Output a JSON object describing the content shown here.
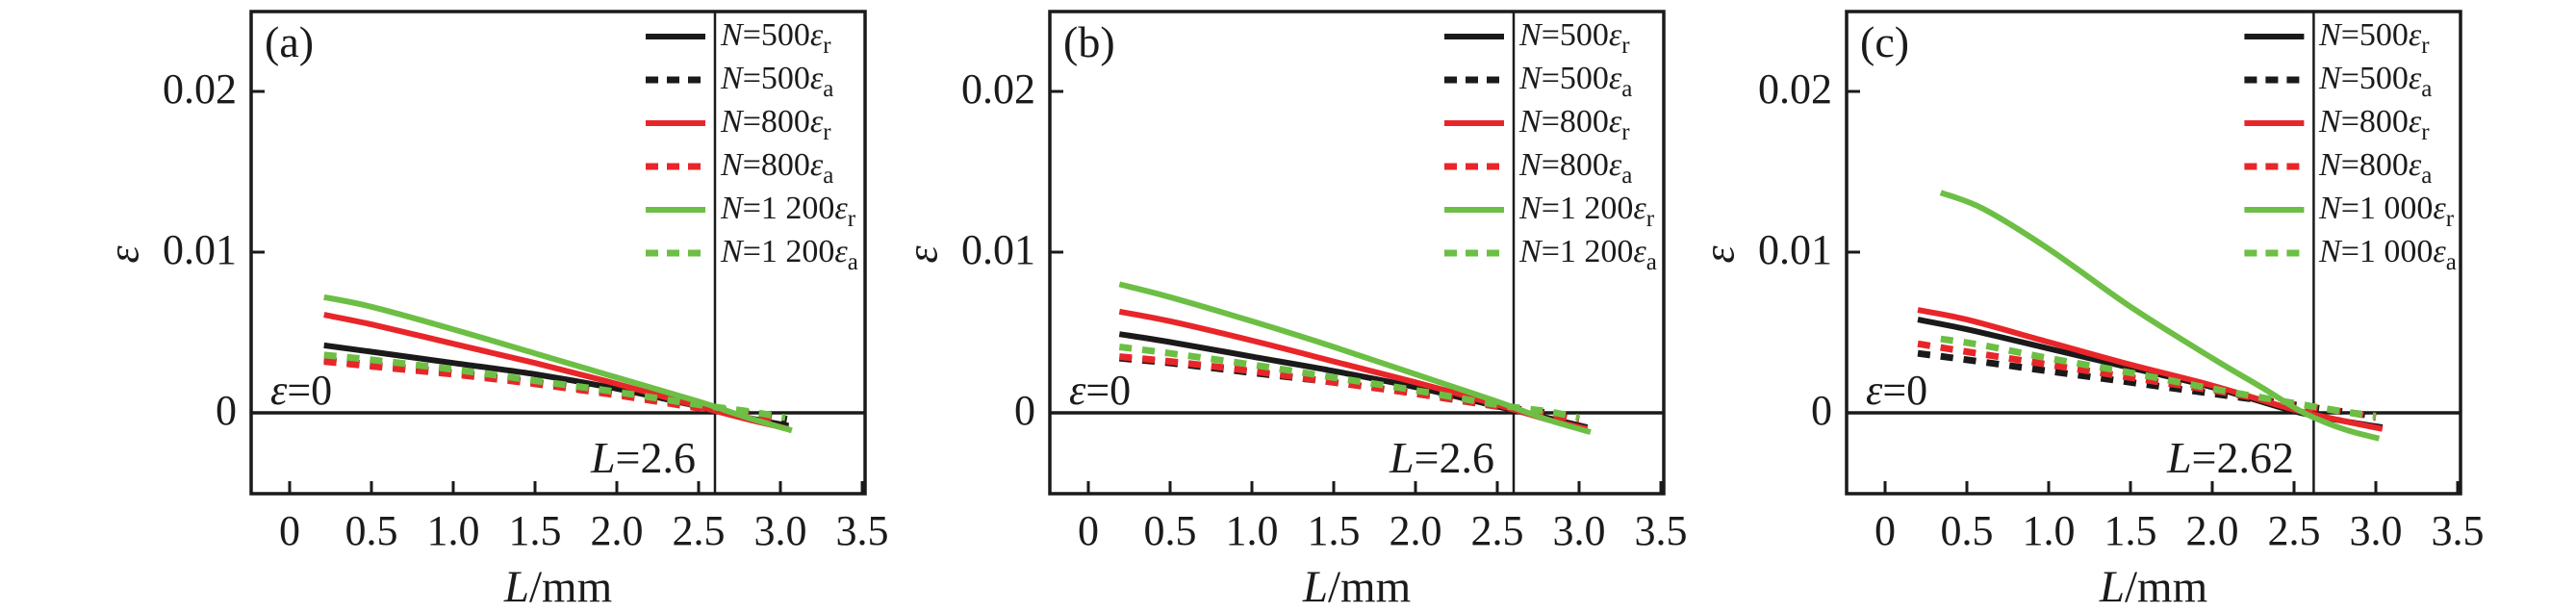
{
  "figure_title": "strain vs length three-panel figure",
  "colors": {
    "black": "#1a1a1a",
    "red": "#e8262a",
    "green": "#6cbf44",
    "frame": "#1a1a1a",
    "background": "#ffffff"
  },
  "axis": {
    "x_ticks": [
      "0",
      "0.5",
      "1.0",
      "1.5",
      "2.0",
      "2.5",
      "3.0",
      "3.5"
    ],
    "y_ticks": [
      "0",
      "0.01",
      "0.02"
    ],
    "xlabel_sym": "L",
    "xlabel_rest": "/mm",
    "ylabel": "ε"
  },
  "panels": [
    {
      "letter": "(a)",
      "eps_zero": {
        "sym": "ε",
        "rest": "=0"
      },
      "vline_label": {
        "sym": "L",
        "rest": "=2.6"
      },
      "legend": [
        {
          "pre": "N",
          "mid": "=500",
          "eps": "ε",
          "sub": "r"
        },
        {
          "pre": "N",
          "mid": "=500",
          "eps": "ε",
          "sub": "a"
        },
        {
          "pre": "N",
          "mid": "=800",
          "eps": "ε",
          "sub": "r"
        },
        {
          "pre": "N",
          "mid": "=800",
          "eps": "ε",
          "sub": "a"
        },
        {
          "pre": "N",
          "mid": "=1 200",
          "eps": "ε",
          "sub": "r"
        },
        {
          "pre": "N",
          "mid": "=1 200",
          "eps": "ε",
          "sub": "a"
        }
      ]
    },
    {
      "letter": "(b)",
      "eps_zero": {
        "sym": "ε",
        "rest": "=0"
      },
      "vline_label": {
        "sym": "L",
        "rest": "=2.6"
      },
      "legend": [
        {
          "pre": "N",
          "mid": "=500",
          "eps": "ε",
          "sub": "r"
        },
        {
          "pre": "N",
          "mid": "=500",
          "eps": "ε",
          "sub": "a"
        },
        {
          "pre": "N",
          "mid": "=800",
          "eps": "ε",
          "sub": "r"
        },
        {
          "pre": "N",
          "mid": "=800",
          "eps": "ε",
          "sub": "a"
        },
        {
          "pre": "N",
          "mid": "=1 200",
          "eps": "ε",
          "sub": "r"
        },
        {
          "pre": "N",
          "mid": "=1 200",
          "eps": "ε",
          "sub": "a"
        }
      ]
    },
    {
      "letter": "(c)",
      "eps_zero": {
        "sym": "ε",
        "rest": "=0"
      },
      "vline_label": {
        "sym": "L",
        "rest": "=2.62"
      },
      "legend": [
        {
          "pre": "N",
          "mid": "=500",
          "eps": "ε",
          "sub": "r"
        },
        {
          "pre": "N",
          "mid": "=500",
          "eps": "ε",
          "sub": "a"
        },
        {
          "pre": "N",
          "mid": "=800",
          "eps": "ε",
          "sub": "r"
        },
        {
          "pre": "N",
          "mid": "=800",
          "eps": "ε",
          "sub": "a"
        },
        {
          "pre": "N",
          "mid": "=1 000",
          "eps": "ε",
          "sub": "r"
        },
        {
          "pre": "N",
          "mid": "=1 000",
          "eps": "ε",
          "sub": "a"
        }
      ]
    }
  ],
  "chart_data": [
    {
      "panel": "a",
      "type": "line",
      "xlabel": "L/mm",
      "ylabel": "ε",
      "xlim": [
        -0.24,
        3.52
      ],
      "ylim": [
        -0.005,
        0.025
      ],
      "x_ticks": [
        0,
        0.5,
        1.0,
        1.5,
        2.0,
        2.5,
        3.0,
        3.5
      ],
      "y_ticks": [
        0,
        0.01,
        0.02
      ],
      "vline": {
        "x": 2.6,
        "label": "L=2.6"
      },
      "hline": {
        "y": 0,
        "label": "ε=0"
      },
      "legend_position": "top-right",
      "series": [
        {
          "name": "N=500εr",
          "color": "#1a1a1a",
          "style": "solid",
          "points": [
            [
              0.21,
              0.0042
            ],
            [
              0.5,
              0.0038
            ],
            [
              1.0,
              0.0031
            ],
            [
              1.5,
              0.0024
            ],
            [
              2.0,
              0.0015
            ],
            [
              2.5,
              0.0004
            ],
            [
              2.8,
              -0.0003
            ],
            [
              3.05,
              -0.0008
            ]
          ]
        },
        {
          "name": "N=500εa",
          "color": "#1a1a1a",
          "style": "dashed",
          "points": [
            [
              0.21,
              0.0033
            ],
            [
              0.5,
              0.003
            ],
            [
              1.0,
              0.0025
            ],
            [
              1.5,
              0.0019
            ],
            [
              2.0,
              0.0012
            ],
            [
              2.5,
              0.0004
            ],
            [
              2.8,
              0.0
            ],
            [
              3.04,
              -0.0004
            ]
          ]
        },
        {
          "name": "N=800εr",
          "color": "#e8262a",
          "style": "solid",
          "points": [
            [
              0.21,
              0.0061
            ],
            [
              0.5,
              0.0055
            ],
            [
              1.0,
              0.0043
            ],
            [
              1.5,
              0.0031
            ],
            [
              2.0,
              0.0018
            ],
            [
              2.5,
              0.0004
            ],
            [
              2.8,
              -0.0004
            ],
            [
              3.05,
              -0.001
            ]
          ]
        },
        {
          "name": "N=800εa",
          "color": "#e8262a",
          "style": "dashed",
          "points": [
            [
              0.21,
              0.0032
            ],
            [
              0.5,
              0.0029
            ],
            [
              1.0,
              0.0024
            ],
            [
              1.5,
              0.0018
            ],
            [
              2.0,
              0.0011
            ],
            [
              2.5,
              0.0003
            ],
            [
              2.8,
              -0.0001
            ],
            [
              3.0,
              -0.0004
            ]
          ]
        },
        {
          "name": "N=1 200εr",
          "color": "#6cbf44",
          "style": "solid",
          "points": [
            [
              0.21,
              0.0072
            ],
            [
              0.5,
              0.0066
            ],
            [
              1.0,
              0.0052
            ],
            [
              1.5,
              0.0037
            ],
            [
              2.0,
              0.0022
            ],
            [
              2.5,
              0.0007
            ],
            [
              2.8,
              -0.0003
            ],
            [
              3.07,
              -0.0011
            ]
          ]
        },
        {
          "name": "N=1 200εa",
          "color": "#6cbf44",
          "style": "dashed",
          "points": [
            [
              0.21,
              0.0036
            ],
            [
              0.5,
              0.0033
            ],
            [
              1.0,
              0.0027
            ],
            [
              1.5,
              0.002
            ],
            [
              2.0,
              0.0013
            ],
            [
              2.5,
              0.0005
            ],
            [
              2.8,
              0.0001
            ],
            [
              3.03,
              -0.0003
            ]
          ]
        }
      ]
    },
    {
      "panel": "b",
      "type": "line",
      "xlabel": "L/mm",
      "ylabel": "ε",
      "xlim": [
        -0.24,
        3.52
      ],
      "ylim": [
        -0.005,
        0.025
      ],
      "x_ticks": [
        0,
        0.5,
        1.0,
        1.5,
        2.0,
        2.5,
        3.0,
        3.5
      ],
      "y_ticks": [
        0,
        0.01,
        0.02
      ],
      "vline": {
        "x": 2.6,
        "label": "L=2.6"
      },
      "hline": {
        "y": 0,
        "label": "ε=0"
      },
      "legend_position": "top-right",
      "series": [
        {
          "name": "N=500εr",
          "color": "#1a1a1a",
          "style": "solid",
          "points": [
            [
              0.19,
              0.0049
            ],
            [
              0.5,
              0.0044
            ],
            [
              1.0,
              0.0035
            ],
            [
              1.5,
              0.0026
            ],
            [
              2.0,
              0.0016
            ],
            [
              2.5,
              0.0004
            ],
            [
              2.8,
              -0.0003
            ],
            [
              3.05,
              -0.0009
            ]
          ]
        },
        {
          "name": "N=500εa",
          "color": "#1a1a1a",
          "style": "dashed",
          "points": [
            [
              0.19,
              0.0034
            ],
            [
              0.5,
              0.0031
            ],
            [
              1.0,
              0.0025
            ],
            [
              1.5,
              0.0019
            ],
            [
              2.0,
              0.0012
            ],
            [
              2.5,
              0.0004
            ],
            [
              2.8,
              0.0
            ],
            [
              3.0,
              -0.0004
            ]
          ]
        },
        {
          "name": "N=800εr",
          "color": "#e8262a",
          "style": "solid",
          "points": [
            [
              0.19,
              0.0063
            ],
            [
              0.5,
              0.0057
            ],
            [
              1.0,
              0.0045
            ],
            [
              1.5,
              0.0032
            ],
            [
              2.0,
              0.0019
            ],
            [
              2.5,
              0.0005
            ],
            [
              2.8,
              -0.0004
            ],
            [
              3.05,
              -0.001
            ]
          ]
        },
        {
          "name": "N=800εa",
          "color": "#e8262a",
          "style": "dashed",
          "points": [
            [
              0.19,
              0.0035
            ],
            [
              0.5,
              0.0032
            ],
            [
              1.0,
              0.0026
            ],
            [
              1.5,
              0.0019
            ],
            [
              2.0,
              0.0012
            ],
            [
              2.5,
              0.0004
            ],
            [
              2.8,
              -0.0001
            ],
            [
              3.0,
              -0.0004
            ]
          ]
        },
        {
          "name": "N=1 200εr",
          "color": "#6cbf44",
          "style": "solid",
          "points": [
            [
              0.19,
              0.008
            ],
            [
              0.5,
              0.0072
            ],
            [
              1.0,
              0.0057
            ],
            [
              1.5,
              0.0041
            ],
            [
              2.0,
              0.0024
            ],
            [
              2.5,
              0.0007
            ],
            [
              2.8,
              -0.0004
            ],
            [
              3.07,
              -0.0012
            ]
          ]
        },
        {
          "name": "N=1 200εa",
          "color": "#6cbf44",
          "style": "dashed",
          "points": [
            [
              0.19,
              0.0041
            ],
            [
              0.5,
              0.0037
            ],
            [
              1.0,
              0.003
            ],
            [
              1.5,
              0.0022
            ],
            [
              2.0,
              0.0014
            ],
            [
              2.5,
              0.0005
            ],
            [
              2.8,
              0.0001
            ],
            [
              3.0,
              -0.0003
            ]
          ]
        }
      ]
    },
    {
      "panel": "c",
      "type": "line",
      "xlabel": "L/mm",
      "ylabel": "ε",
      "xlim": [
        -0.24,
        3.52
      ],
      "ylim": [
        -0.005,
        0.025
      ],
      "x_ticks": [
        0,
        0.5,
        1.0,
        1.5,
        2.0,
        2.5,
        3.0,
        3.5
      ],
      "y_ticks": [
        0,
        0.01,
        0.02
      ],
      "vline": {
        "x": 2.62,
        "label": "L=2.62"
      },
      "hline": {
        "y": 0,
        "label": "ε=0"
      },
      "legend_position": "top-right",
      "series": [
        {
          "name": "N=500εr",
          "color": "#1a1a1a",
          "style": "solid",
          "points": [
            [
              0.2,
              0.0058
            ],
            [
              0.5,
              0.0052
            ],
            [
              1.0,
              0.004
            ],
            [
              1.5,
              0.0028
            ],
            [
              2.0,
              0.0016
            ],
            [
              2.5,
              0.0001
            ],
            [
              2.8,
              -0.0005
            ],
            [
              3.04,
              -0.0009
            ]
          ]
        },
        {
          "name": "N=500εa",
          "color": "#1a1a1a",
          "style": "dashed",
          "points": [
            [
              0.2,
              0.0037
            ],
            [
              0.5,
              0.0033
            ],
            [
              1.0,
              0.0026
            ],
            [
              1.5,
              0.0019
            ],
            [
              2.0,
              0.0012
            ],
            [
              2.5,
              0.0005
            ],
            [
              2.85,
              0.0
            ],
            [
              3.0,
              -0.0002
            ]
          ]
        },
        {
          "name": "N=800εr",
          "color": "#e8262a",
          "style": "solid",
          "points": [
            [
              0.2,
              0.0064
            ],
            [
              0.5,
              0.0058
            ],
            [
              1.0,
              0.0044
            ],
            [
              1.5,
              0.003
            ],
            [
              2.0,
              0.0017
            ],
            [
              2.5,
              0.0002
            ],
            [
              2.8,
              -0.0005
            ],
            [
              3.04,
              -0.001
            ]
          ]
        },
        {
          "name": "N=800εa",
          "color": "#e8262a",
          "style": "dashed",
          "points": [
            [
              0.2,
              0.0043
            ],
            [
              0.5,
              0.0038
            ],
            [
              1.0,
              0.003
            ],
            [
              1.5,
              0.0022
            ],
            [
              2.0,
              0.0014
            ],
            [
              2.5,
              0.0005
            ],
            [
              2.85,
              0.0
            ],
            [
              3.0,
              -0.0003
            ]
          ]
        },
        {
          "name": "N=1 000εr",
          "color": "#6cbf44",
          "style": "solid",
          "points": [
            [
              0.34,
              0.0137
            ],
            [
              0.6,
              0.0127
            ],
            [
              1.0,
              0.0102
            ],
            [
              1.5,
              0.0066
            ],
            [
              2.0,
              0.0034
            ],
            [
              2.3,
              0.0016
            ],
            [
              2.56,
              0.0
            ],
            [
              2.8,
              -0.001
            ],
            [
              3.02,
              -0.0016
            ]
          ]
        },
        {
          "name": "N=1 000εa",
          "color": "#6cbf44",
          "style": "dashed",
          "points": [
            [
              0.34,
              0.0046
            ],
            [
              0.6,
              0.0042
            ],
            [
              1.0,
              0.0034
            ],
            [
              1.5,
              0.0025
            ],
            [
              2.0,
              0.0015
            ],
            [
              2.5,
              0.0006
            ],
            [
              2.85,
              0.0
            ],
            [
              3.0,
              -0.0002
            ]
          ]
        }
      ]
    }
  ]
}
